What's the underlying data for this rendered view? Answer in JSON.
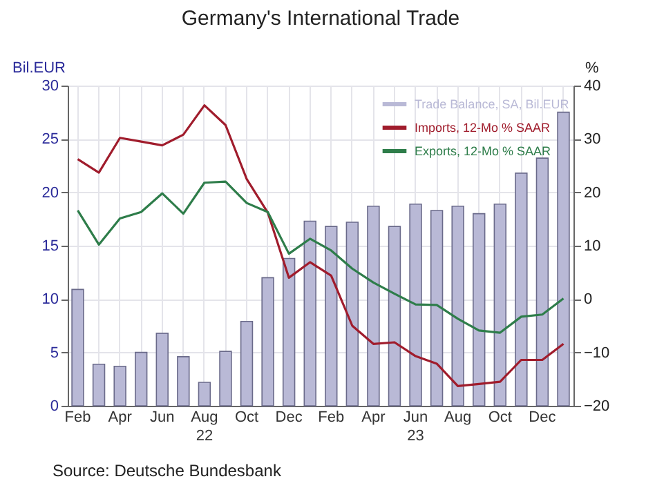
{
  "chart_data": {
    "type": "bar",
    "title": "Germany's International Trade",
    "ylabel": "Bil.EUR",
    "y2label": "%",
    "categories": [
      "Feb",
      null,
      "Apr",
      null,
      "Jun",
      null,
      "Aug",
      null,
      "Oct",
      null,
      "Dec",
      null,
      "Feb",
      null,
      "Apr",
      null,
      "Jun",
      null,
      "Aug",
      null,
      "Oct",
      null,
      "Dec",
      null
    ],
    "series": [
      {
        "name": "Trade Balance, SA, Bil.EUR",
        "color": "#b9b9d6",
        "values": [
          10.9,
          3.9,
          3.7,
          5.0,
          6.8,
          4.6,
          2.2,
          5.1,
          7.9,
          12.0,
          13.8,
          17.3,
          16.8,
          17.2,
          18.7,
          16.8,
          18.9,
          18.3,
          18.7,
          18.0,
          18.9,
          21.8,
          23.2,
          27.5
        ]
      },
      {
        "name": "Imports, 12-Mo % SAAR",
        "type": "line",
        "axis": "y2",
        "color": "#a01c2c",
        "values": [
          26.2,
          23.7,
          30.2,
          29.5,
          28.8,
          30.8,
          36.3,
          32.6,
          22.5,
          16.2,
          4.0,
          6.9,
          4.4,
          -5.0,
          -8.4,
          -8.1,
          -10.7,
          -12.1,
          -16.3,
          -15.9,
          -15.5,
          -11.4,
          -11.4,
          -8.4
        ]
      },
      {
        "name": "Exports, 12-Mo % SAAR",
        "type": "line",
        "axis": "y2",
        "color": "#2e7d4a",
        "values": [
          16.6,
          10.2,
          15.1,
          16.3,
          19.8,
          16.0,
          21.8,
          22.0,
          18.0,
          16.3,
          8.5,
          11.3,
          9.1,
          5.7,
          3.1,
          1.0,
          -1.0,
          -1.1,
          -3.7,
          -5.9,
          -6.3,
          -3.3,
          -2.9,
          0.1
        ]
      }
    ],
    "ylim": [
      0,
      30
    ],
    "yticks": [
      0,
      5,
      10,
      15,
      20,
      25,
      30
    ],
    "y2lim": [
      -20,
      40
    ],
    "y2ticks": [
      -20,
      -10,
      0,
      10,
      20,
      30,
      40
    ],
    "grid": true,
    "legend": "top right",
    "annotations": [
      "22",
      "23",
      "Source: Deutsche Bundesbank"
    ]
  }
}
